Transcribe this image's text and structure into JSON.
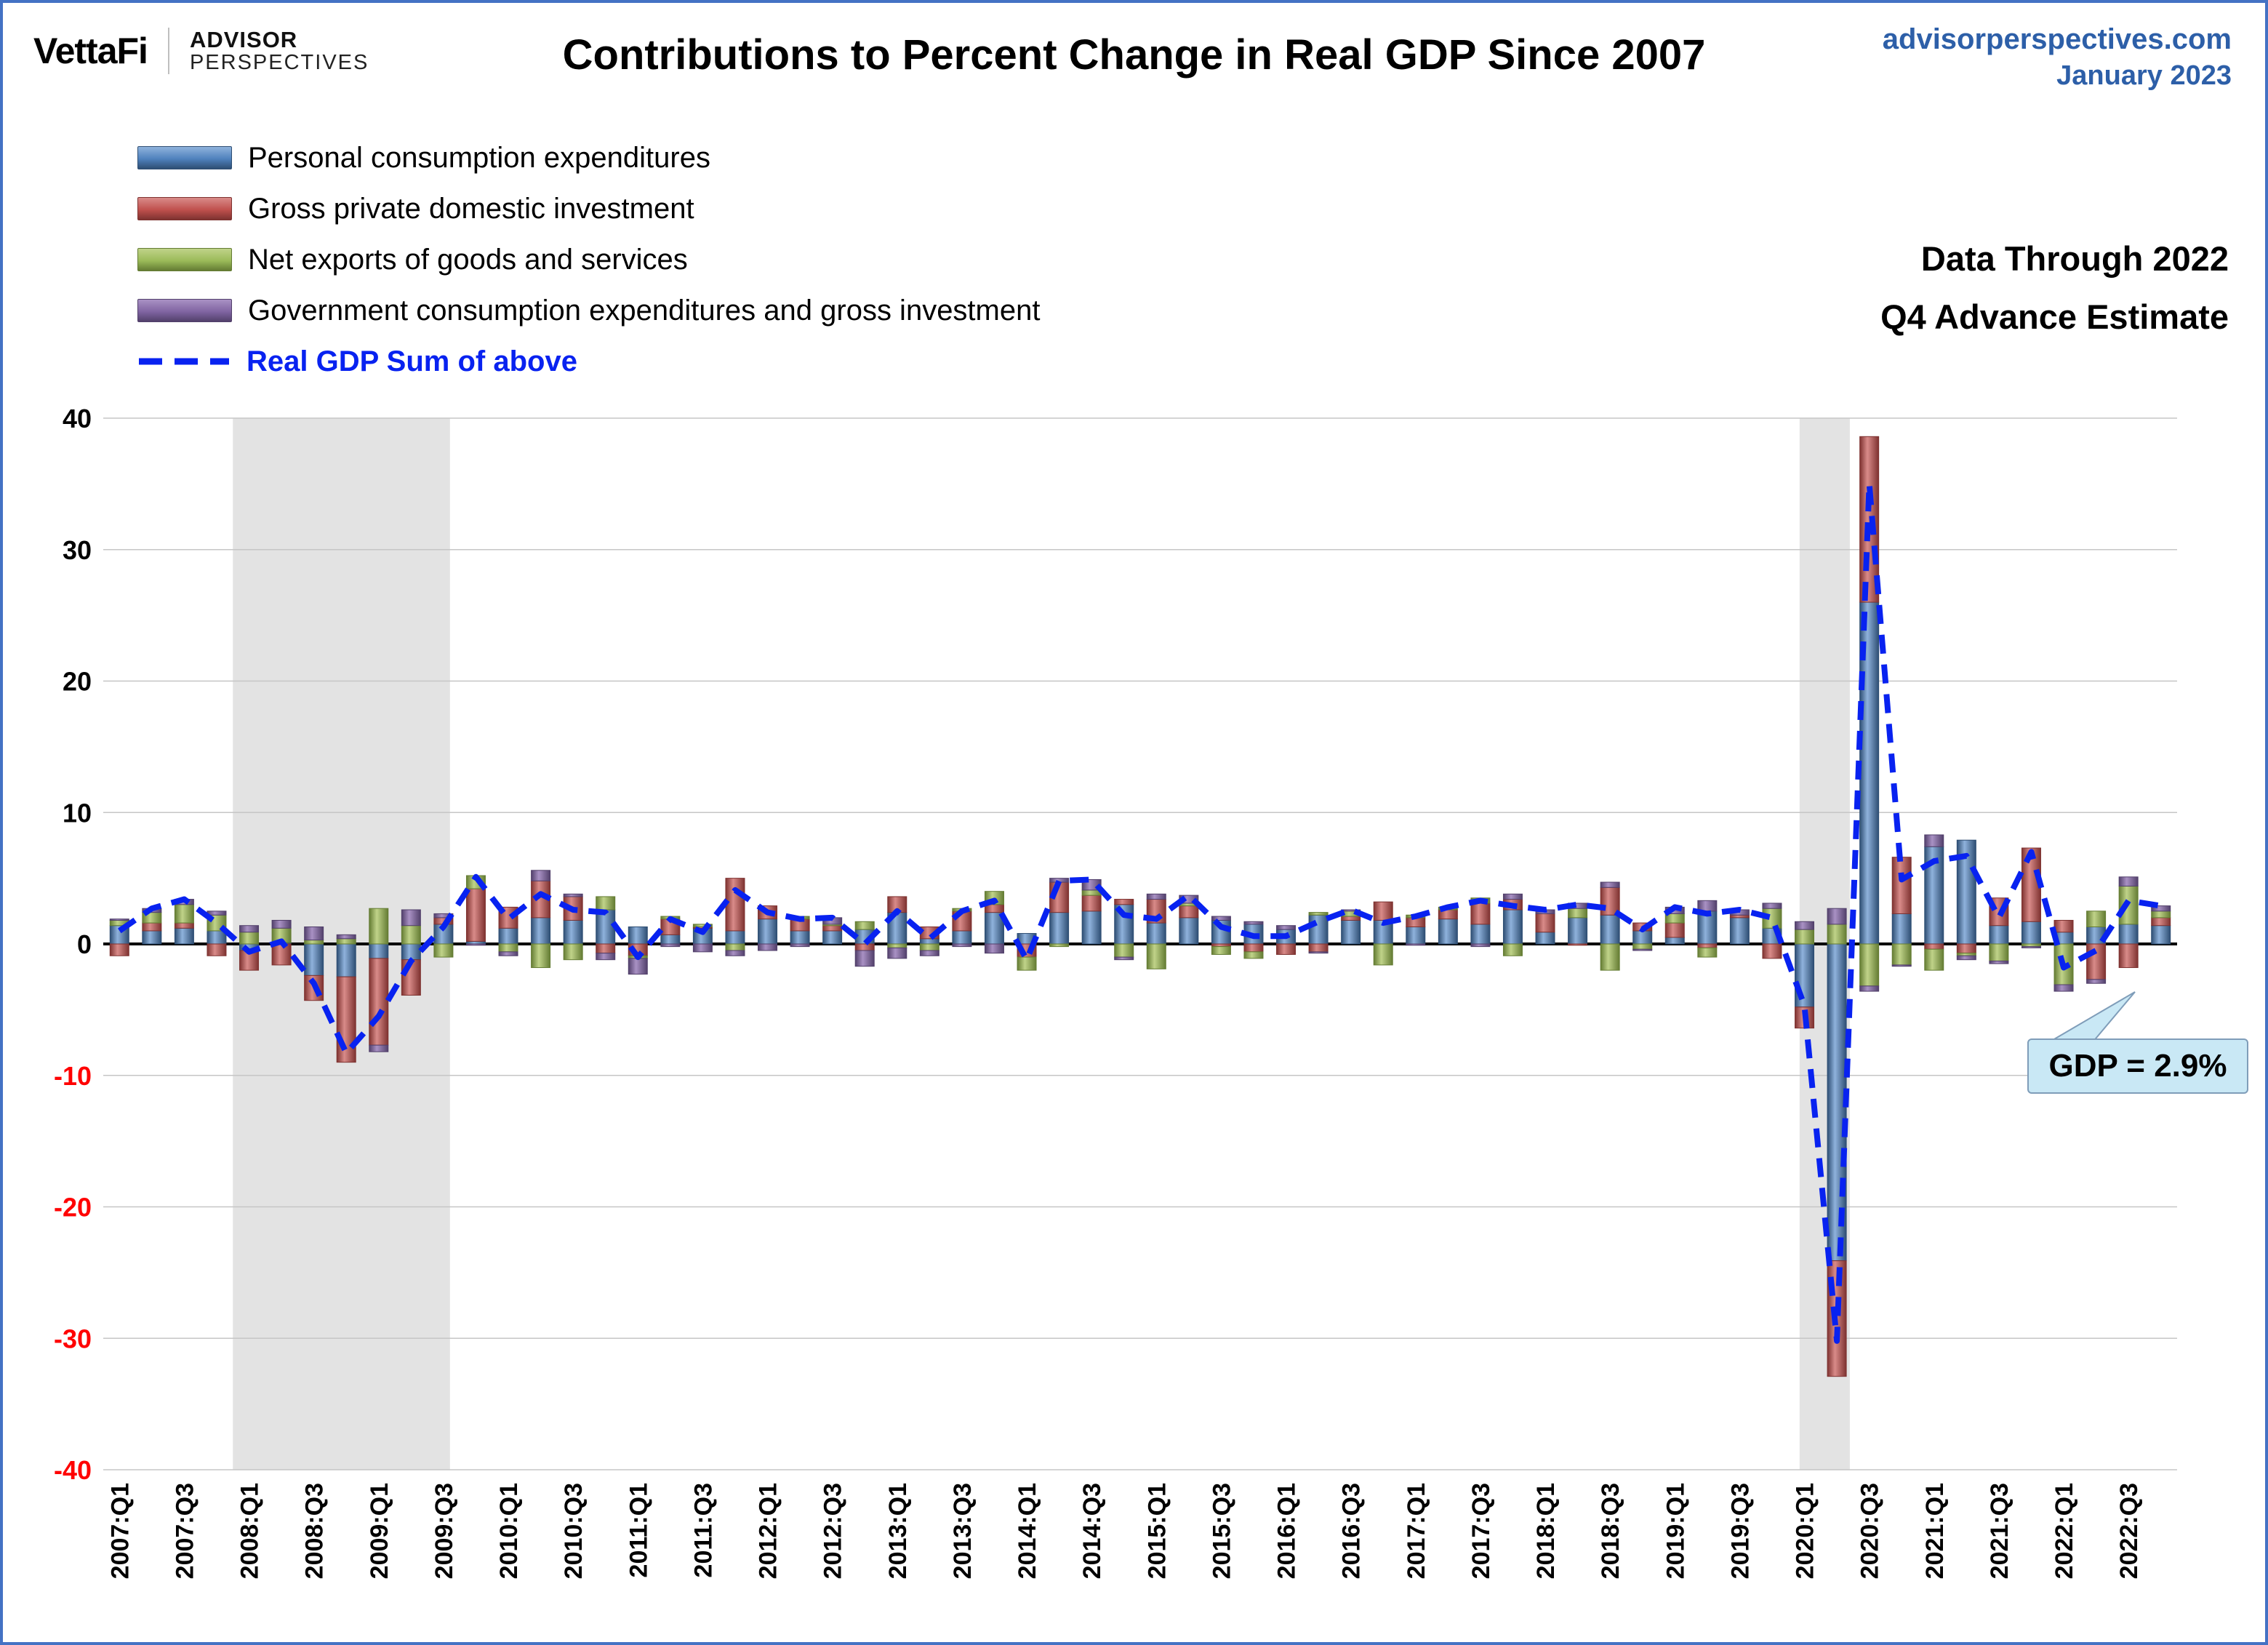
{
  "header": {
    "brand": "VettaFi",
    "brand_sub_top": "ADVISOR",
    "brand_sub_bottom": "PERSPECTIVES",
    "title": "Contributions to Percent Change in Real GDP Since 2007",
    "site": "advisorperspectives.com",
    "date": "January 2023"
  },
  "notes": {
    "line1": "Data Through 2022",
    "line2": "Q4 Advance Estimate"
  },
  "legend": {
    "items": [
      {
        "label": "Personal consumption expenditures"
      },
      {
        "label": "Gross private domestic investment"
      },
      {
        "label": "Net exports of goods and services"
      },
      {
        "label": "Government consumption expenditures and gross investment"
      }
    ],
    "line_item": {
      "label": "Real GDP Sum of above"
    }
  },
  "callout": {
    "text": "GDP = 2.9%"
  },
  "chart_data": {
    "type": "bar",
    "stacked": true,
    "title": "Contributions to Percent Change in Real GDP Since 2007",
    "ylim": [
      -40,
      40
    ],
    "ytick_step": 10,
    "negative_tick_color": "#FF0000",
    "band_color": "#e3e3e3",
    "line_color": "#0822F0",
    "x_labeled_every": 2,
    "recession_bands": [
      [
        4.0,
        10.7
      ],
      [
        52.35,
        53.9
      ]
    ],
    "categories": [
      "2007:Q1",
      "2007:Q2",
      "2007:Q3",
      "2007:Q4",
      "2008:Q1",
      "2008:Q2",
      "2008:Q3",
      "2008:Q4",
      "2009:Q1",
      "2009:Q2",
      "2009:Q3",
      "2009:Q4",
      "2010:Q1",
      "2010:Q2",
      "2010:Q3",
      "2010:Q4",
      "2011:Q1",
      "2011:Q2",
      "2011:Q3",
      "2011:Q4",
      "2012:Q1",
      "2012:Q2",
      "2012:Q3",
      "2012:Q4",
      "2013:Q1",
      "2013:Q2",
      "2013:Q3",
      "2013:Q4",
      "2014:Q1",
      "2014:Q2",
      "2014:Q3",
      "2014:Q4",
      "2015:Q1",
      "2015:Q2",
      "2015:Q3",
      "2015:Q4",
      "2016:Q1",
      "2016:Q2",
      "2016:Q3",
      "2016:Q4",
      "2017:Q1",
      "2017:Q2",
      "2017:Q3",
      "2017:Q4",
      "2018:Q1",
      "2018:Q2",
      "2018:Q3",
      "2018:Q4",
      "2019:Q1",
      "2019:Q2",
      "2019:Q3",
      "2019:Q4",
      "2020:Q1",
      "2020:Q2",
      "2020:Q3",
      "2020:Q4",
      "2021:Q1",
      "2021:Q2",
      "2021:Q3",
      "2021:Q4",
      "2022:Q1",
      "2022:Q2",
      "2022:Q3",
      "2022:Q4"
    ],
    "series": [
      {
        "name": "Personal consumption expenditures",
        "color": "#4F81BD",
        "dark": "#2E4E73",
        "light": "#8FB2DC",
        "values": [
          1.4,
          1.0,
          1.2,
          1.0,
          -0.5,
          0.1,
          -2.4,
          -2.5,
          -1.1,
          -1.2,
          1.5,
          0.2,
          1.2,
          2.0,
          1.8,
          2.6,
          1.3,
          0.7,
          1.2,
          1.0,
          1.9,
          1.0,
          1.0,
          1.1,
          2.4,
          0.4,
          1.0,
          2.4,
          0.8,
          2.4,
          2.5,
          3.0,
          1.6,
          2.0,
          1.8,
          1.5,
          1.1,
          2.2,
          1.8,
          1.8,
          1.3,
          1.9,
          1.5,
          2.6,
          0.9,
          2.0,
          2.2,
          1.0,
          0.5,
          2.5,
          2.0,
          1.2,
          -4.8,
          -24.1,
          26.0,
          2.3,
          7.4,
          7.9,
          1.4,
          1.7,
          0.9,
          1.3,
          1.5,
          1.4
        ]
      },
      {
        "name": "Gross private domestic investment",
        "color": "#C0504D",
        "dark": "#7E3230",
        "light": "#D98B89",
        "values": [
          -0.9,
          0.6,
          0.4,
          -0.9,
          -1.5,
          -1.6,
          -1.9,
          -6.5,
          -6.6,
          -2.7,
          0.5,
          4.0,
          1.6,
          2.8,
          1.8,
          -0.7,
          -0.9,
          1.2,
          0.1,
          4.0,
          1.0,
          0.9,
          0.4,
          -0.5,
          1.2,
          0.9,
          1.5,
          0.6,
          -1.0,
          2.3,
          1.2,
          0.4,
          1.8,
          0.9,
          -0.2,
          -0.6,
          -0.8,
          -0.6,
          0.3,
          1.4,
          0.7,
          0.7,
          1.6,
          0.8,
          1.4,
          -0.1,
          2.1,
          0.6,
          1.1,
          -0.3,
          0.2,
          -1.1,
          -1.6,
          -8.8,
          12.6,
          4.3,
          -0.4,
          -0.7,
          2.1,
          5.6,
          0.9,
          -2.7,
          -1.8,
          0.6
        ]
      },
      {
        "name": "Net exports of goods and services",
        "color": "#9BBB59",
        "dark": "#647C33",
        "light": "#C0D389",
        "values": [
          0.4,
          0.8,
          1.4,
          1.2,
          0.9,
          1.1,
          0.3,
          0.4,
          2.7,
          1.4,
          -1.0,
          1.0,
          -0.6,
          -1.8,
          -1.2,
          1.0,
          -0.2,
          0.2,
          0.2,
          -0.5,
          0.0,
          0.2,
          0.1,
          0.6,
          -0.3,
          -0.5,
          0.2,
          1.0,
          -1.0,
          -0.2,
          0.4,
          -1.0,
          -1.9,
          0.2,
          -0.6,
          -0.5,
          0.0,
          0.2,
          0.4,
          -1.6,
          0.2,
          0.2,
          0.4,
          -0.9,
          0.0,
          0.7,
          -2.0,
          -0.4,
          0.7,
          -0.7,
          0.0,
          1.5,
          1.1,
          1.5,
          -3.2,
          -1.6,
          -1.6,
          -0.2,
          -1.3,
          -0.2,
          -3.1,
          1.2,
          2.9,
          0.5
        ]
      },
      {
        "name": "Government consumption expenditures and gross investment",
        "color": "#8064A2",
        "dark": "#52406B",
        "light": "#A991C4",
        "values": [
          0.1,
          0.3,
          0.4,
          0.3,
          0.5,
          0.6,
          1.0,
          0.3,
          -0.5,
          1.2,
          0.3,
          -0.1,
          -0.3,
          0.8,
          0.2,
          -0.5,
          -1.2,
          -0.2,
          -0.6,
          -0.4,
          -0.5,
          -0.2,
          0.5,
          -1.2,
          -0.8,
          -0.4,
          -0.2,
          -0.7,
          0.0,
          0.3,
          0.8,
          -0.2,
          0.4,
          0.6,
          0.3,
          0.2,
          0.3,
          -0.1,
          0.1,
          0.0,
          -0.1,
          0.0,
          -0.2,
          0.4,
          0.3,
          0.4,
          0.4,
          -0.1,
          0.5,
          0.8,
          0.4,
          0.4,
          0.6,
          1.2,
          -0.4,
          -0.1,
          0.9,
          -0.3,
          -0.2,
          -0.1,
          -0.5,
          -0.3,
          0.7,
          0.4
        ]
      }
    ],
    "line_series": {
      "name": "Real GDP Sum of above",
      "definition": "sum of the four series above",
      "last_value": 2.9
    }
  }
}
